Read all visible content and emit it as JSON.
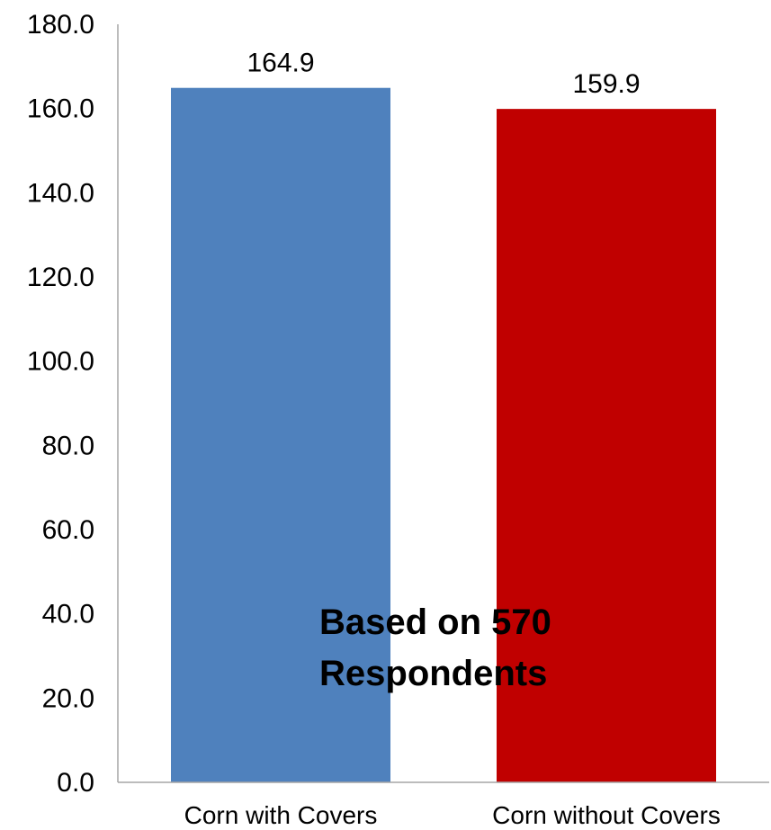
{
  "chart_data": {
    "type": "bar",
    "categories": [
      "Corn with Covers",
      "Corn without Covers"
    ],
    "values": [
      164.9,
      159.9
    ],
    "value_labels": [
      "164.9",
      "159.9"
    ],
    "colors": [
      "#4F81BD",
      "#C00000"
    ],
    "ylim": [
      0,
      180
    ],
    "yticks": [
      0,
      20,
      40,
      60,
      80,
      100,
      120,
      140,
      160,
      180
    ],
    "ytick_labels": [
      "0.0",
      "20.0",
      "40.0",
      "60.0",
      "80.0",
      "100.0",
      "120.0",
      "140.0",
      "160.0",
      "180.0"
    ],
    "grid": false,
    "legend": "none",
    "annotation": [
      "Based on 570",
      "Respondents"
    ]
  }
}
